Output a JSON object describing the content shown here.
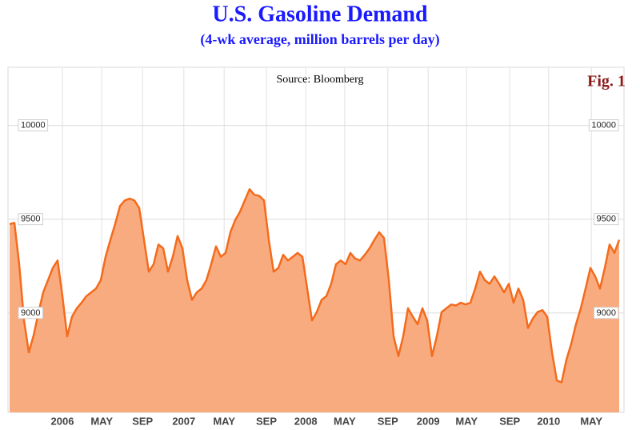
{
  "chart_data": {
    "type": "area",
    "title": "U.S. Gasoline Demand",
    "subtitle": "(4-wk average, million barrels per day)",
    "source": "Source: Bloomberg",
    "annotation": "Fig. 1",
    "line_color": "#f36b1c",
    "fill_color": "#f9ab80",
    "grid": true,
    "xlim": [
      0,
      127
    ],
    "xticks": [
      {
        "value": 11,
        "label": "2006"
      },
      {
        "value": 19.2,
        "label": "MAY"
      },
      {
        "value": 27.7,
        "label": "SEP"
      },
      {
        "value": 36.3,
        "label": "2007"
      },
      {
        "value": 44.7,
        "label": "MAY"
      },
      {
        "value": 53.5,
        "label": "SEP"
      },
      {
        "value": 61.7,
        "label": "2008"
      },
      {
        "value": 69.8,
        "label": "MAY"
      },
      {
        "value": 78.8,
        "label": "SEP"
      },
      {
        "value": 87.2,
        "label": "2009"
      },
      {
        "value": 95.2,
        "label": "MAY"
      },
      {
        "value": 104.2,
        "label": "SEP"
      },
      {
        "value": 112.3,
        "label": "2010"
      },
      {
        "value": 121.2,
        "label": "MAY"
      }
    ],
    "ylim": [
      8470,
      10310
    ],
    "yticks": [
      9000,
      9500,
      10000
    ],
    "values": [
      9474,
      9480,
      9260,
      8960,
      8790,
      8880,
      9000,
      9110,
      9175,
      9240,
      9280,
      9090,
      8875,
      8980,
      9025,
      9055,
      9090,
      9110,
      9130,
      9175,
      9300,
      9390,
      9475,
      9570,
      9600,
      9610,
      9600,
      9560,
      9390,
      9220,
      9260,
      9365,
      9345,
      9220,
      9300,
      9410,
      9345,
      9175,
      9070,
      9110,
      9130,
      9175,
      9260,
      9355,
      9300,
      9320,
      9430,
      9495,
      9540,
      9600,
      9660,
      9630,
      9625,
      9600,
      9390,
      9220,
      9240,
      9310,
      9280,
      9300,
      9320,
      9300,
      9130,
      8960,
      9005,
      9070,
      9090,
      9155,
      9260,
      9280,
      9260,
      9320,
      9290,
      9280,
      9310,
      9345,
      9390,
      9430,
      9400,
      9175,
      8875,
      8770,
      8875,
      9025,
      8980,
      8940,
      9025,
      8960,
      8770,
      8875,
      9005,
      9025,
      9045,
      9040,
      9055,
      9045,
      9055,
      9130,
      9220,
      9175,
      9155,
      9195,
      9155,
      9110,
      9155,
      9055,
      9130,
      9070,
      8920,
      8970,
      9005,
      9015,
      8980,
      8790,
      8640,
      8630,
      8750,
      8835,
      8940,
      9025,
      9130,
      9240,
      9195,
      9130,
      9240,
      9365,
      9320,
      9390
    ]
  }
}
